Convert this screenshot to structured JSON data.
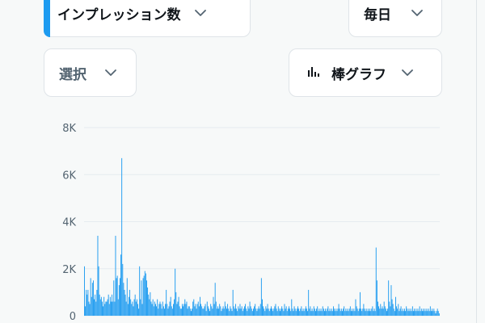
{
  "toolbar": {
    "metric_label": "インプレッション数",
    "interval_label": "毎日",
    "select_label": "選択",
    "chart_type_label": "棒グラフ"
  },
  "colors": {
    "accent": "#1d9bf0",
    "bar": "#1d9bf0",
    "grid": "#e6ecf0",
    "tick_text": "#536471"
  },
  "icons": {
    "dropdown": "chevron-down-icon",
    "chart_type": "bar-chart-icon"
  },
  "chart_data": {
    "type": "bar",
    "title": "",
    "xlabel": "",
    "ylabel": "",
    "ylim": [
      0,
      8000
    ],
    "yticks": [
      0,
      2000,
      4000,
      6000,
      8000
    ],
    "ytick_labels": [
      "0",
      "2K",
      "4K",
      "6K",
      "8K"
    ],
    "grid": true,
    "series": [
      {
        "values": [
          2100,
          400,
          1100,
          900,
          1100,
          600,
          500,
          1600,
          800,
          1400,
          1500,
          700,
          900,
          600,
          1100,
          3400,
          2100,
          900,
          700,
          800,
          600,
          400,
          800,
          500,
          600,
          600,
          700,
          900,
          500,
          800,
          600,
          900,
          600,
          1500,
          600,
          3400,
          1600,
          1700,
          700,
          1300,
          1600,
          2600,
          6700,
          2200,
          1400,
          1100,
          900,
          600,
          1600,
          500,
          800,
          1100,
          700,
          500,
          600,
          400,
          700,
          900,
          600,
          700,
          500,
          300,
          2100,
          700,
          1500,
          500,
          1600,
          1700,
          1900,
          1800,
          1500,
          1200,
          900,
          700,
          1000,
          600,
          500,
          700,
          400,
          600,
          500,
          400,
          700,
          300,
          500,
          600,
          500,
          300,
          600,
          400,
          300,
          500,
          1100,
          500,
          300,
          400,
          600,
          800,
          400,
          300,
          500,
          700,
          2000,
          1000,
          500,
          600,
          800,
          400,
          300,
          300,
          500,
          400,
          500,
          700,
          500,
          600,
          300,
          400,
          400,
          300,
          200,
          300,
          600,
          700,
          400,
          500,
          300,
          500,
          600,
          400,
          800,
          500,
          400,
          300,
          300,
          400,
          500,
          200,
          600,
          400,
          300,
          200,
          500,
          400,
          300,
          800,
          500,
          1400,
          600,
          300,
          400,
          300,
          500,
          400,
          200,
          300,
          400,
          300,
          600,
          400,
          300,
          500,
          300,
          200,
          400,
          300,
          200,
          1100,
          400,
          300,
          500,
          300,
          200,
          400,
          300,
          500,
          300,
          400,
          200,
          300,
          400,
          500,
          300,
          200,
          400,
          300,
          600,
          400,
          300,
          200,
          300,
          400,
          500,
          300,
          200,
          300,
          400,
          300,
          500,
          1600,
          700,
          400,
          300,
          200,
          400,
          300,
          500,
          300,
          200,
          300,
          400,
          300,
          200,
          300,
          400,
          500,
          300,
          200,
          400,
          300,
          200,
          300,
          400,
          300,
          200,
          500,
          300,
          400,
          200,
          300,
          400,
          300,
          200,
          700,
          300,
          200,
          400,
          300,
          200,
          300,
          400,
          300,
          200,
          300,
          400,
          200,
          300,
          200,
          300,
          400,
          300,
          200,
          1100,
          300,
          400,
          200,
          300,
          200,
          400,
          300,
          200,
          300,
          400,
          200,
          300,
          200,
          300,
          200,
          400,
          300,
          200,
          300,
          200,
          300,
          400,
          200,
          300,
          200,
          300,
          200,
          400,
          300,
          200,
          300,
          200,
          300,
          500,
          300,
          200,
          300,
          200,
          300,
          400,
          200,
          300,
          200,
          300,
          200,
          300,
          400,
          200,
          300,
          200,
          300,
          200,
          700,
          400,
          300,
          200,
          300,
          1000,
          300,
          200,
          300,
          500,
          300,
          200,
          300,
          200,
          300,
          200,
          300,
          200,
          300,
          400,
          200,
          300,
          200,
          2900,
          1500,
          600,
          400,
          300,
          500,
          300,
          400,
          300,
          600,
          400,
          300,
          200,
          300,
          1500,
          600,
          400,
          1300,
          700,
          500,
          300,
          200,
          800,
          400,
          300,
          500,
          200,
          300,
          400,
          200,
          300,
          200,
          300,
          200,
          400,
          300,
          200,
          300,
          200,
          300,
          200,
          400,
          200,
          300,
          200,
          300,
          200,
          300,
          200,
          400,
          200,
          300,
          200,
          300,
          200,
          300,
          200,
          300,
          200,
          300,
          200,
          400,
          200,
          300,
          200,
          300,
          200,
          100,
          200,
          300,
          200,
          100
        ]
      }
    ]
  }
}
